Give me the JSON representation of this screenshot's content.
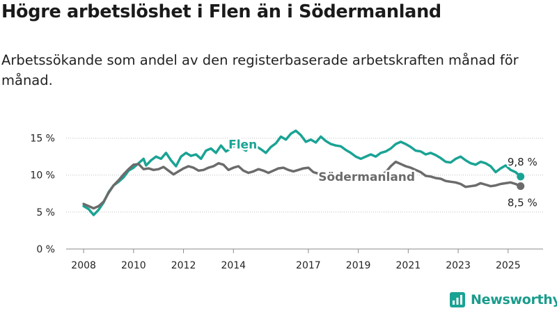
{
  "header": {
    "title": "Högre arbetslöshet i Flen än i Södermanland",
    "subtitle": "Arbetssökande som andel av den registerbaserade arbetskraften månad för månad."
  },
  "brand": {
    "name": "Newsworthy"
  },
  "colors": {
    "flen": "#1aa394",
    "sodermanland": "#6b6b6b",
    "grid": "#bdbdbd"
  },
  "chart_data": {
    "type": "line",
    "title": "Högre arbetslöshet i Flen än i Södermanland",
    "subtitle": "Arbetssökande som andel av den registerbaserade arbetskraften månad för månad.",
    "y_ticks": [
      0,
      5,
      10,
      15
    ],
    "y_tick_labels": [
      "0 %",
      "5 %",
      "10 %",
      "15 %"
    ],
    "ylim": [
      0,
      17.5
    ],
    "x_ticks": [
      2008,
      2010,
      2012,
      2014,
      2017,
      2019,
      2021,
      2023,
      2025
    ],
    "x_tick_labels": [
      "2008",
      "2010",
      "2012",
      "2014",
      "2017",
      "2019",
      "2021",
      "2023",
      "2025"
    ],
    "xlim": [
      2007.3,
      2026.4
    ],
    "grid": "horizontal",
    "legend": "inline labels",
    "series": [
      {
        "name": "Flen",
        "color": "#1aa394",
        "end_label": "9,8 %",
        "points": [
          [
            2008.0,
            5.8
          ],
          [
            2008.2,
            5.4
          ],
          [
            2008.4,
            4.6
          ],
          [
            2008.6,
            5.3
          ],
          [
            2008.8,
            6.3
          ],
          [
            2009.0,
            7.7
          ],
          [
            2009.2,
            8.6
          ],
          [
            2009.4,
            9.1
          ],
          [
            2009.6,
            9.7
          ],
          [
            2009.8,
            10.6
          ],
          [
            2010.0,
            11.0
          ],
          [
            2010.2,
            11.6
          ],
          [
            2010.4,
            12.2
          ],
          [
            2010.5,
            11.3
          ],
          [
            2010.7,
            12.0
          ],
          [
            2010.9,
            12.5
          ],
          [
            2011.1,
            12.2
          ],
          [
            2011.3,
            13.0
          ],
          [
            2011.5,
            12.0
          ],
          [
            2011.7,
            11.2
          ],
          [
            2011.9,
            12.5
          ],
          [
            2012.1,
            13.0
          ],
          [
            2012.3,
            12.6
          ],
          [
            2012.5,
            12.8
          ],
          [
            2012.7,
            12.2
          ],
          [
            2012.9,
            13.3
          ],
          [
            2013.1,
            13.6
          ],
          [
            2013.3,
            13.0
          ],
          [
            2013.5,
            14.0
          ],
          [
            2013.7,
            13.2
          ],
          [
            2013.9,
            13.6
          ],
          [
            2014.1,
            14.1
          ],
          [
            2014.3,
            13.7
          ],
          [
            2014.5,
            13.3
          ],
          [
            2014.7,
            14.5
          ],
          [
            2014.9,
            13.9
          ],
          [
            2015.1,
            13.5
          ],
          [
            2015.3,
            13.0
          ],
          [
            2015.5,
            13.8
          ],
          [
            2015.7,
            14.3
          ],
          [
            2015.9,
            15.2
          ],
          [
            2016.1,
            14.8
          ],
          [
            2016.3,
            15.6
          ],
          [
            2016.5,
            16.0
          ],
          [
            2016.7,
            15.4
          ],
          [
            2016.9,
            14.5
          ],
          [
            2017.1,
            14.8
          ],
          [
            2017.3,
            14.4
          ],
          [
            2017.5,
            15.2
          ],
          [
            2017.7,
            14.6
          ],
          [
            2017.9,
            14.2
          ],
          [
            2018.1,
            14.0
          ],
          [
            2018.3,
            13.9
          ],
          [
            2018.5,
            13.4
          ],
          [
            2018.7,
            13.0
          ],
          [
            2018.9,
            12.5
          ],
          [
            2019.1,
            12.2
          ],
          [
            2019.3,
            12.5
          ],
          [
            2019.5,
            12.8
          ],
          [
            2019.7,
            12.5
          ],
          [
            2019.9,
            13.0
          ],
          [
            2020.1,
            13.2
          ],
          [
            2020.3,
            13.6
          ],
          [
            2020.5,
            14.2
          ],
          [
            2020.7,
            14.5
          ],
          [
            2020.9,
            14.2
          ],
          [
            2021.1,
            13.8
          ],
          [
            2021.3,
            13.3
          ],
          [
            2021.5,
            13.2
          ],
          [
            2021.7,
            12.8
          ],
          [
            2021.9,
            13.0
          ],
          [
            2022.1,
            12.7
          ],
          [
            2022.3,
            12.3
          ],
          [
            2022.5,
            11.8
          ],
          [
            2022.7,
            11.7
          ],
          [
            2022.9,
            12.2
          ],
          [
            2023.1,
            12.5
          ],
          [
            2023.3,
            12.0
          ],
          [
            2023.5,
            11.6
          ],
          [
            2023.7,
            11.4
          ],
          [
            2023.9,
            11.8
          ],
          [
            2024.1,
            11.6
          ],
          [
            2024.3,
            11.2
          ],
          [
            2024.5,
            10.4
          ],
          [
            2024.7,
            10.9
          ],
          [
            2024.9,
            11.3
          ],
          [
            2025.1,
            10.7
          ],
          [
            2025.3,
            10.4
          ],
          [
            2025.5,
            9.8
          ]
        ]
      },
      {
        "name": "Södermanland",
        "color": "#6b6b6b",
        "end_label": "8,5 %",
        "points": [
          [
            2008.0,
            6.1
          ],
          [
            2008.2,
            5.8
          ],
          [
            2008.4,
            5.5
          ],
          [
            2008.6,
            5.8
          ],
          [
            2008.8,
            6.4
          ],
          [
            2009.0,
            7.6
          ],
          [
            2009.2,
            8.6
          ],
          [
            2009.4,
            9.3
          ],
          [
            2009.6,
            10.1
          ],
          [
            2009.8,
            10.8
          ],
          [
            2010.0,
            11.4
          ],
          [
            2010.2,
            11.5
          ],
          [
            2010.4,
            10.8
          ],
          [
            2010.6,
            10.9
          ],
          [
            2010.8,
            10.7
          ],
          [
            2011.0,
            10.8
          ],
          [
            2011.2,
            11.1
          ],
          [
            2011.4,
            10.6
          ],
          [
            2011.6,
            10.1
          ],
          [
            2011.8,
            10.5
          ],
          [
            2012.0,
            10.9
          ],
          [
            2012.2,
            11.2
          ],
          [
            2012.4,
            11.0
          ],
          [
            2012.6,
            10.6
          ],
          [
            2012.8,
            10.7
          ],
          [
            2013.0,
            11.0
          ],
          [
            2013.2,
            11.2
          ],
          [
            2013.4,
            11.6
          ],
          [
            2013.6,
            11.4
          ],
          [
            2013.8,
            10.7
          ],
          [
            2014.0,
            11.0
          ],
          [
            2014.2,
            11.2
          ],
          [
            2014.4,
            10.6
          ],
          [
            2014.6,
            10.3
          ],
          [
            2014.8,
            10.5
          ],
          [
            2015.0,
            10.8
          ],
          [
            2015.2,
            10.6
          ],
          [
            2015.4,
            10.3
          ],
          [
            2015.6,
            10.6
          ],
          [
            2015.8,
            10.9
          ],
          [
            2016.0,
            11.0
          ],
          [
            2016.2,
            10.7
          ],
          [
            2016.4,
            10.5
          ],
          [
            2016.6,
            10.7
          ],
          [
            2016.8,
            10.9
          ],
          [
            2017.0,
            11.0
          ],
          [
            2017.2,
            10.4
          ],
          [
            2017.6,
            10.0
          ],
          [
            2018.2,
            9.8
          ],
          [
            2018.8,
            9.7
          ],
          [
            2019.4,
            9.8
          ],
          [
            2019.9,
            10.0
          ],
          [
            2020.1,
            10.4
          ],
          [
            2020.3,
            11.2
          ],
          [
            2020.5,
            11.8
          ],
          [
            2020.7,
            11.5
          ],
          [
            2020.9,
            11.2
          ],
          [
            2021.1,
            11.0
          ],
          [
            2021.3,
            10.7
          ],
          [
            2021.5,
            10.4
          ],
          [
            2021.7,
            9.9
          ],
          [
            2021.9,
            9.8
          ],
          [
            2022.1,
            9.6
          ],
          [
            2022.3,
            9.5
          ],
          [
            2022.5,
            9.2
          ],
          [
            2022.7,
            9.1
          ],
          [
            2022.9,
            9.0
          ],
          [
            2023.1,
            8.8
          ],
          [
            2023.3,
            8.4
          ],
          [
            2023.5,
            8.5
          ],
          [
            2023.7,
            8.6
          ],
          [
            2023.9,
            8.9
          ],
          [
            2024.1,
            8.7
          ],
          [
            2024.3,
            8.5
          ],
          [
            2024.5,
            8.6
          ],
          [
            2024.7,
            8.8
          ],
          [
            2024.9,
            8.9
          ],
          [
            2025.1,
            9.0
          ],
          [
            2025.3,
            8.8
          ],
          [
            2025.5,
            8.5
          ]
        ]
      }
    ]
  }
}
